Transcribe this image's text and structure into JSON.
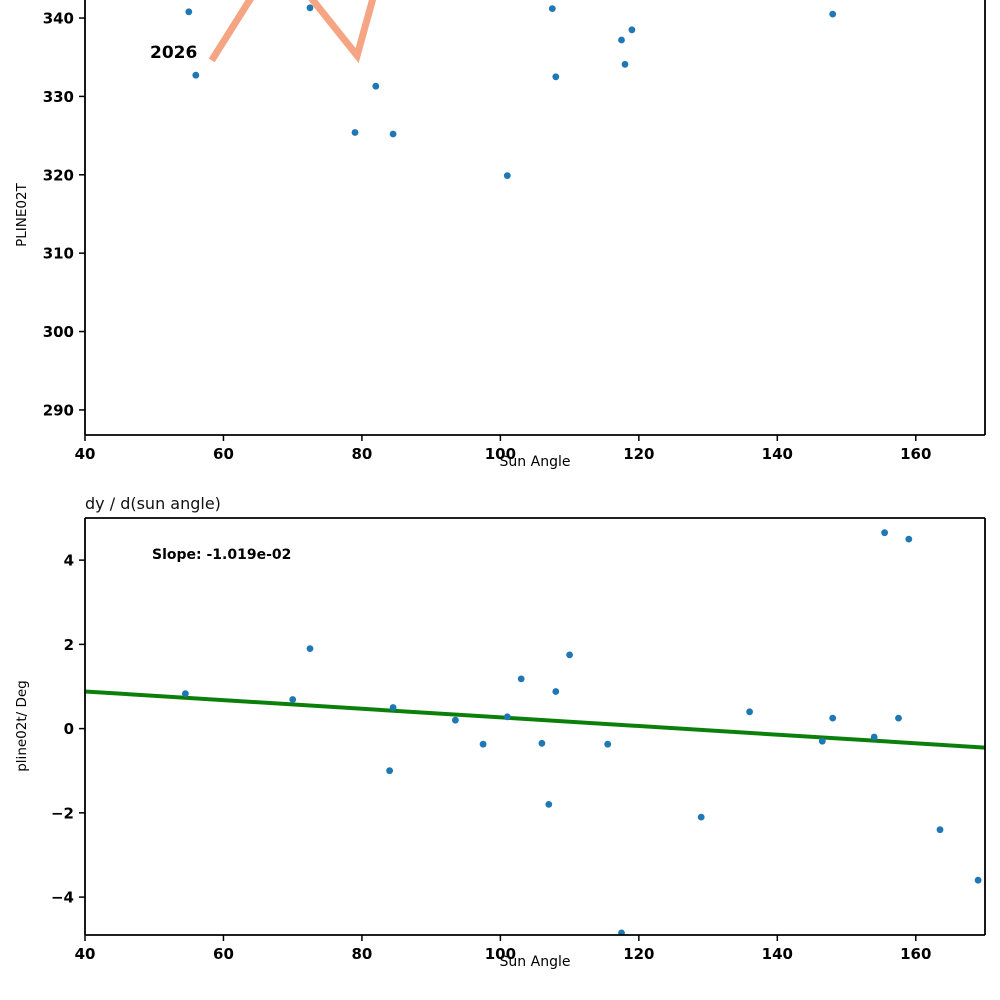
{
  "figure": {
    "background": "#ffffff",
    "point_color": "#1f77b4",
    "trend_color": "#0a800a",
    "highlight_color": "#f5a583"
  },
  "chart_data": [
    {
      "type": "scatter",
      "title": "",
      "xlabel": "Sun Angle",
      "ylabel": "PLINE02T",
      "xlim": [
        40,
        170
      ],
      "ylim": [
        286.8,
        342.3
      ],
      "xticks": [
        40,
        60,
        80,
        100,
        120,
        140,
        160
      ],
      "yticks": [
        290,
        300,
        310,
        320,
        330,
        340
      ],
      "grid": false,
      "legend": "none",
      "point_color": "#1f77b4",
      "points": [
        [
          55,
          340.8
        ],
        [
          56,
          332.7
        ],
        [
          72.5,
          341.3
        ],
        [
          79,
          325.4
        ],
        [
          82,
          331.3
        ],
        [
          84.5,
          325.2
        ],
        [
          101,
          319.9
        ],
        [
          107.5,
          341.2
        ],
        [
          108,
          332.5
        ],
        [
          117.5,
          337.2
        ],
        [
          118,
          334.1
        ],
        [
          119,
          338.5
        ],
        [
          148,
          340.5
        ]
      ],
      "annotation": {
        "text": "2026",
        "x": 49.2,
        "y": 336.2
      },
      "lines": [
        {
          "name": "salmon-zigzag-line",
          "color": "#f5a583",
          "width": 7,
          "points": [
            [
              58.3,
              334.6
            ],
            [
              66,
              345.4
            ],
            [
              70,
              345.5
            ],
            [
              79.3,
              335.2
            ],
            [
              83,
              347
            ]
          ]
        }
      ]
    },
    {
      "type": "scatter",
      "title": "dy / d(sun angle)",
      "xlabel": "Sun Angle",
      "ylabel": "pline02t/ Deg",
      "xlim": [
        40,
        170
      ],
      "ylim": [
        -4.9,
        5.0
      ],
      "xticks": [
        40,
        60,
        80,
        100,
        120,
        140,
        160
      ],
      "yticks": [
        -4,
        -2,
        0,
        2,
        4
      ],
      "grid": false,
      "legend": "none",
      "point_color": "#1f77b4",
      "slope_label": "Slope: -1.019e-02",
      "slope_value": -0.01019,
      "points": [
        [
          54.5,
          0.83
        ],
        [
          70,
          0.69
        ],
        [
          72.5,
          1.9
        ],
        [
          84,
          -1.0
        ],
        [
          84.5,
          0.5
        ],
        [
          93.5,
          0.2
        ],
        [
          97.5,
          -0.37
        ],
        [
          101,
          0.28
        ],
        [
          103,
          1.18
        ],
        [
          106,
          -0.35
        ],
        [
          107,
          -1.8
        ],
        [
          108,
          0.88
        ],
        [
          110,
          1.75
        ],
        [
          115.5,
          -0.37
        ],
        [
          117.5,
          -4.85
        ],
        [
          129,
          -2.1
        ],
        [
          136,
          0.4
        ],
        [
          146.5,
          -0.3
        ],
        [
          148,
          0.25
        ],
        [
          154,
          -0.2
        ],
        [
          155.5,
          4.65
        ],
        [
          157.5,
          0.25
        ],
        [
          159,
          4.5
        ],
        [
          163.5,
          -2.4
        ],
        [
          169,
          -3.6
        ]
      ],
      "annotation": {
        "text": "Slope: -1.019e-02",
        "x": 49.5,
        "y": 4.15
      },
      "lines": [
        {
          "name": "trend-line",
          "color": "#0a800a",
          "width": 4,
          "points": [
            [
              40,
              0.88
            ],
            [
              170,
              -0.45
            ]
          ]
        }
      ]
    }
  ]
}
